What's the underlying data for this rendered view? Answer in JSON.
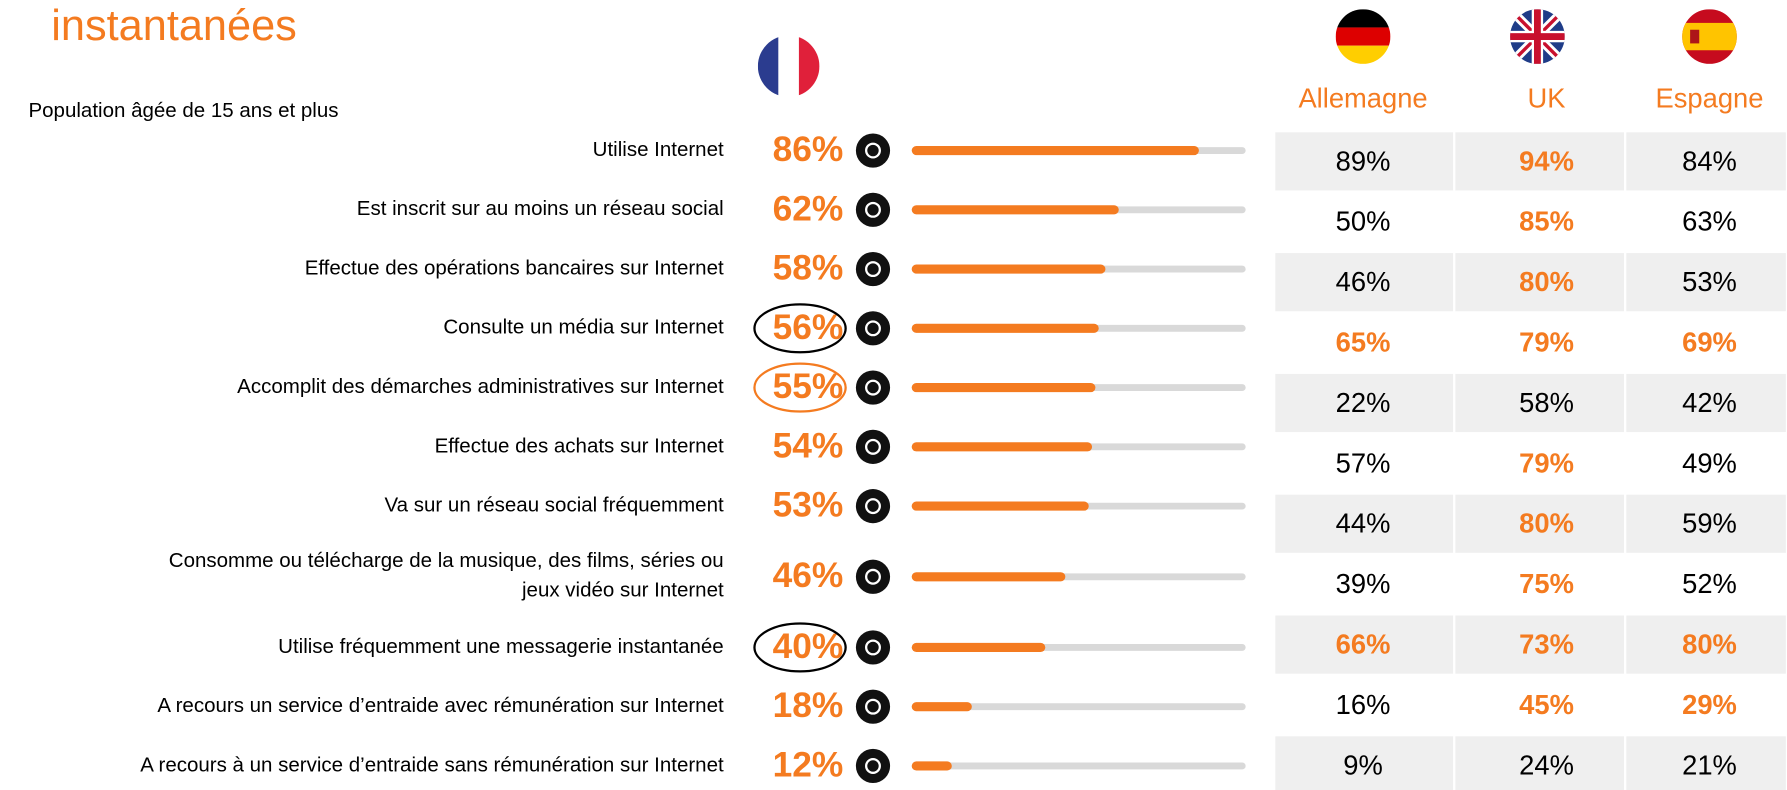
{
  "chart_data": {
    "type": "bar",
    "title": "instantanées",
    "subtitle": "Population âgée de 15 ans et plus",
    "categories": [
      "Utilise Internet",
      "Est inscrit sur au moins un réseau social",
      "Effectue des opérations bancaires sur Internet",
      "Consulte un média sur Internet",
      "Accomplit des démarches administratives sur Internet",
      "Effectue des achats sur Internet",
      "Va sur un réseau social fréquemment",
      "Consomme ou télécharge de la musique, des films, séries ou\njeux vidéo sur Internet",
      "Utilise fréquemment une messagerie instantanée",
      "A recours un service d’entraide avec rémunération sur Internet",
      "A recours à un service d’entraide sans rémunération sur Internet"
    ],
    "values": [
      86,
      62,
      58,
      56,
      55,
      54,
      53,
      46,
      40,
      18,
      12
    ],
    "value_labels": [
      "86%",
      "62%",
      "58%",
      "56%",
      "55%",
      "54%",
      "53%",
      "46%",
      "40%",
      "18%",
      "12%"
    ],
    "color": "#f47b20",
    "track_color": "#d9d9d9",
    "xlim": [
      0,
      100
    ],
    "circles": [
      {
        "index": 3,
        "color": "#000000"
      },
      {
        "index": 4,
        "color": "#f47b20"
      },
      {
        "index": 8,
        "color": "#000000"
      }
    ],
    "table": {
      "columns": [
        "Allemagne",
        "UK",
        "Espagne"
      ],
      "rows": [
        [
          "89%",
          "94%",
          "84%"
        ],
        [
          "50%",
          "85%",
          "63%"
        ],
        [
          "46%",
          "80%",
          "53%"
        ],
        [
          "65%",
          "79%",
          "69%"
        ],
        [
          "22%",
          "58%",
          "42%"
        ],
        [
          "57%",
          "79%",
          "49%"
        ],
        [
          "44%",
          "80%",
          "59%"
        ],
        [
          "39%",
          "75%",
          "52%"
        ],
        [
          "66%",
          "73%",
          "80%"
        ],
        [
          "16%",
          "45%",
          "29%"
        ],
        [
          "9%",
          "24%",
          "21%"
        ]
      ],
      "highlight": [
        [
          false,
          true,
          false
        ],
        [
          false,
          true,
          false
        ],
        [
          false,
          true,
          false
        ],
        [
          true,
          true,
          true
        ],
        [
          false,
          false,
          false
        ],
        [
          false,
          true,
          false
        ],
        [
          false,
          true,
          false
        ],
        [
          false,
          true,
          false
        ],
        [
          true,
          true,
          true
        ],
        [
          false,
          true,
          true
        ],
        [
          false,
          false,
          false
        ]
      ]
    }
  }
}
